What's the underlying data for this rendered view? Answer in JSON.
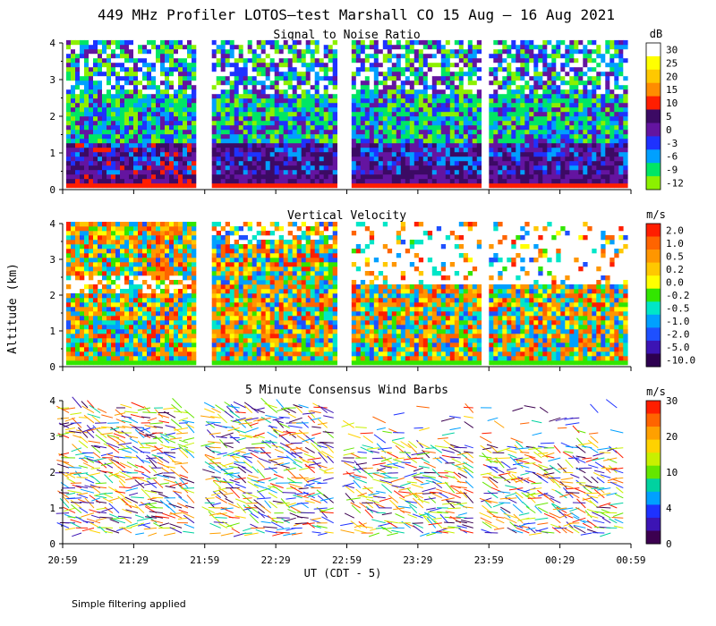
{
  "title": "449 MHz Profiler LOTOS—test Marshall CO 15 Aug — 16 Aug 2021",
  "ylabel": "Altitude (km)",
  "xlabel": "UT  (CDT - 5)",
  "footnote": "Simple filtering applied",
  "chart_data": [
    {
      "type": "heatmap",
      "title": "Signal to Noise Ratio",
      "xlabel": "UT  (CDT - 5)",
      "ylabel": "Altitude (km)",
      "ylim": [
        0,
        4
      ],
      "yticks": [
        "0",
        "1",
        "2",
        "3",
        "4"
      ],
      "xticks": [
        "20:59",
        "21:29",
        "21:59",
        "22:29",
        "22:59",
        "23:29",
        "23:59",
        "00:29",
        "00:59"
      ],
      "colorbar": {
        "unit": "dB",
        "labels": [
          "30",
          "25",
          "20",
          "15",
          "10",
          "5",
          "0",
          "-3",
          "-6",
          "-9",
          "-12"
        ],
        "colors": [
          "#ffffff",
          "#ffff00",
          "#ffc800",
          "#ff8c00",
          "#ff1e00",
          "#3c0a64",
          "#6414a0",
          "#1e32ff",
          "#00a0ff",
          "#00e664",
          "#8cf000"
        ]
      },
      "data_gaps_utc": [
        [
          "21:55",
          "22:02"
        ],
        [
          "22:54",
          "23:01"
        ],
        [
          "23:55",
          "23:59"
        ]
      ],
      "description_values": {
        "low_level_snr_band_km": [
          0.1,
          0.4
        ],
        "strong_return_layers_km": [
          [
            0.8,
            1.5
          ],
          [
            2.8,
            3.6
          ]
        ]
      }
    },
    {
      "type": "heatmap",
      "title": "Vertical Velocity",
      "xlabel": "UT  (CDT - 5)",
      "ylabel": "Altitude (km)",
      "ylim": [
        0,
        4
      ],
      "yticks": [
        "0",
        "1",
        "2",
        "3",
        "4"
      ],
      "xticks": [
        "20:59",
        "21:29",
        "21:59",
        "22:29",
        "22:59",
        "23:29",
        "23:59",
        "00:29",
        "00:59"
      ],
      "colorbar": {
        "unit": "m/s",
        "labels": [
          "2.0",
          "1.0",
          "0.5",
          "0.2",
          "0.0",
          "-0.2",
          "-0.5",
          "-1.0",
          "-2.0",
          "-5.0",
          "-10.0"
        ],
        "colors": [
          "#ff1e00",
          "#ff6400",
          "#ff9600",
          "#ffc800",
          "#ffff00",
          "#32e600",
          "#00e6c8",
          "#00a0ff",
          "#1e50ff",
          "#3c14b4",
          "#2d0050"
        ]
      },
      "data_gaps_utc": [
        [
          "21:55",
          "22:02"
        ],
        [
          "22:54",
          "23:01"
        ],
        [
          "23:55",
          "23:59"
        ]
      ]
    },
    {
      "type": "scatter",
      "title": "5 Minute Consensus Wind Barbs",
      "xlabel": "UT  (CDT - 5)",
      "ylabel": "Altitude (km)",
      "ylim": [
        0,
        4
      ],
      "yticks": [
        "0",
        "1",
        "2",
        "3",
        "4"
      ],
      "xticks": [
        "20:59",
        "21:29",
        "21:59",
        "22:29",
        "22:59",
        "23:29",
        "23:59",
        "00:29",
        "00:59"
      ],
      "colorbar": {
        "unit": "m/s",
        "labels": [
          "30",
          "20",
          "10",
          "4",
          "0"
        ],
        "colors": [
          "#ff1e00",
          "#ff6400",
          "#ffa000",
          "#ffd200",
          "#c8f000",
          "#64e600",
          "#00d2a0",
          "#00a0ff",
          "#1e32ff",
          "#3c14b4",
          "#3c0050"
        ]
      }
    }
  ]
}
